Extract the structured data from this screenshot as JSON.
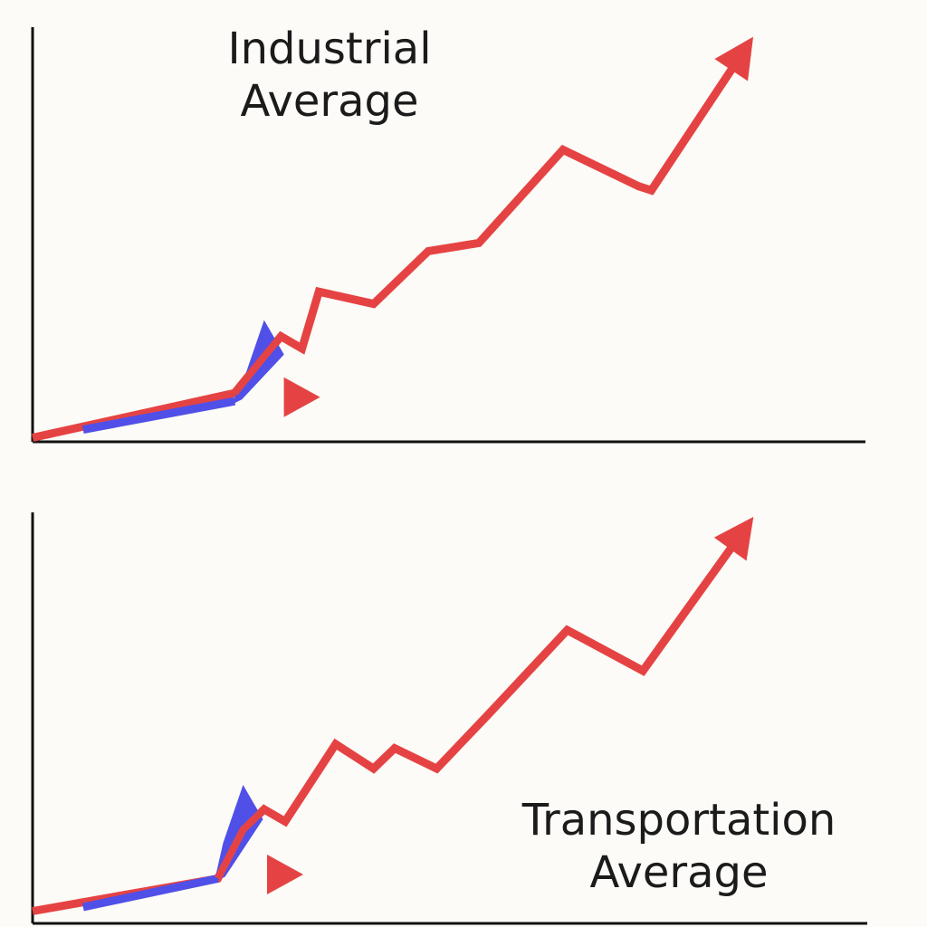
{
  "chart_data": [
    {
      "type": "line",
      "title_lines": [
        "Industrial",
        "Average"
      ],
      "xlabel": "",
      "ylabel": "",
      "xlim": [
        0,
        100
      ],
      "ylim": [
        0,
        100
      ],
      "grid": false,
      "legend": "none",
      "colors": {
        "main": "#e54343",
        "highlight": "#5050e8",
        "axis": "#111111"
      },
      "series": [
        {
          "color": "#e54343",
          "arrow_end": true,
          "x": [
            0,
            24,
            27.5,
            29.5,
            32,
            34,
            40.5,
            47,
            53,
            63,
            72,
            73.5,
            85
          ],
          "y": [
            1,
            12,
            21,
            26,
            23,
            37,
            34,
            47,
            49,
            72,
            63,
            62,
            98
          ]
        },
        {
          "color": "#5050e8",
          "x": [
            6,
            24,
            27.5
          ],
          "y": [
            3,
            10,
            30
          ]
        }
      ],
      "markers": [
        {
          "shape": "triangle-right",
          "x": 32,
          "y": 11,
          "color": "#e54343"
        }
      ]
    },
    {
      "type": "line",
      "title_lines": [
        "Transportation",
        "Average"
      ],
      "xlabel": "",
      "ylabel": "",
      "xlim": [
        0,
        100
      ],
      "ylim": [
        0,
        100
      ],
      "grid": false,
      "legend": "none",
      "colors": {
        "main": "#e54343",
        "highlight": "#5050e8",
        "axis": "#111111"
      },
      "series": [
        {
          "color": "#e54343",
          "arrow_end": true,
          "x": [
            0,
            22,
            25,
            27.5,
            30,
            36,
            40.5,
            43,
            48,
            54,
            63.5,
            72.5,
            85
          ],
          "y": [
            3,
            11,
            23,
            28,
            25,
            44,
            38,
            43,
            38,
            51,
            72,
            62,
            98
          ]
        },
        {
          "color": "#5050e8",
          "x": [
            6,
            22,
            25
          ],
          "y": [
            4,
            11,
            34
          ]
        }
      ],
      "markers": [
        {
          "shape": "triangle-right",
          "x": 30,
          "y": 12,
          "color": "#e54343"
        }
      ]
    }
  ]
}
